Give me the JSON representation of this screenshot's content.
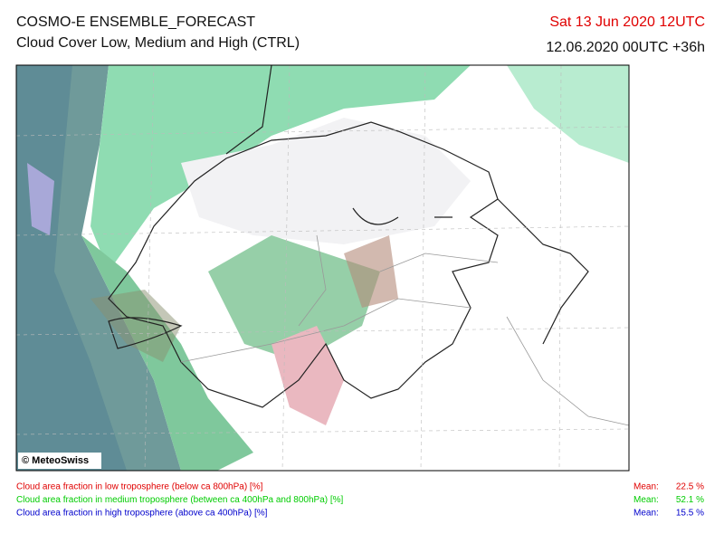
{
  "header": {
    "title": "COSMO-E ENSEMBLE_FORECAST",
    "subtitle": "Cloud Cover Low, Medium and High (CTRL)",
    "valid": "Sat 13 Jun 2020 12UTC",
    "run": "12.06.2020 00UTC +36h"
  },
  "map": {
    "credit": "© MeteoSwiss"
  },
  "legend": {
    "rows": [
      {
        "text": "Cloud area fraction in low troposphere (below ca 800hPa) [%]",
        "mean_label": "Mean:",
        "mean": "22.5 %",
        "color": "#e00000"
      },
      {
        "text": "Cloud area fraction in medium troposphere (between ca 400hPa and 800hPa) [%]",
        "mean_label": "Mean:",
        "mean": "52.1 %",
        "color": "#00cc00"
      },
      {
        "text": "Cloud area fraction in high troposphere (above ca 400hPa) [%]",
        "mean_label": "Mean:",
        "mean": "15.5 %",
        "color": "#0000cc"
      }
    ]
  }
}
